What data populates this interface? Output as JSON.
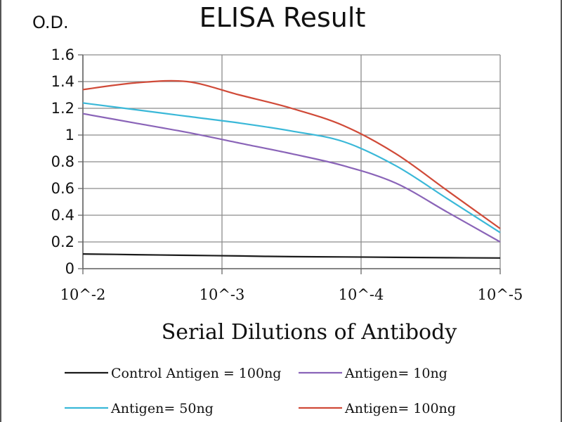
{
  "chart_data": {
    "type": "line",
    "title": "ELISA Result",
    "ylabel": "O.D.",
    "xlabel": "Serial Dilutions  of Antibody",
    "categories": [
      "10^-2",
      "10^-3",
      "10^-4",
      "10^-5"
    ],
    "x": [
      1,
      1.5,
      2,
      2.5,
      3,
      3.5,
      4,
      4.5,
      5
    ],
    "ylim": [
      0,
      1.6
    ],
    "yticks": [
      "0",
      "0.2",
      "0.4",
      "0.6",
      "0.8",
      "1",
      "1.2",
      "1.4",
      "1.6"
    ],
    "grid": true,
    "legend_position": "bottom",
    "series": [
      {
        "name": "Control Antigen = 100ng",
        "color": "#1a1a1a",
        "values": [
          0.11,
          0.105,
          0.1,
          0.095,
          0.09,
          0.088,
          0.085,
          0.082,
          0.08
        ]
      },
      {
        "name": "Antigen= 10ng",
        "color": "#8a64b8",
        "values": [
          1.16,
          1.09,
          1.02,
          0.94,
          0.86,
          0.77,
          0.64,
          0.42,
          0.2
        ]
      },
      {
        "name": "Antigen= 50ng",
        "color": "#3ab8d8",
        "values": [
          1.24,
          1.19,
          1.14,
          1.09,
          1.03,
          0.95,
          0.77,
          0.52,
          0.27
        ]
      },
      {
        "name": "Antigen= 100ng",
        "color": "#d04a38",
        "values": [
          1.34,
          1.39,
          1.4,
          1.3,
          1.2,
          1.07,
          0.86,
          0.58,
          0.3
        ]
      }
    ]
  }
}
